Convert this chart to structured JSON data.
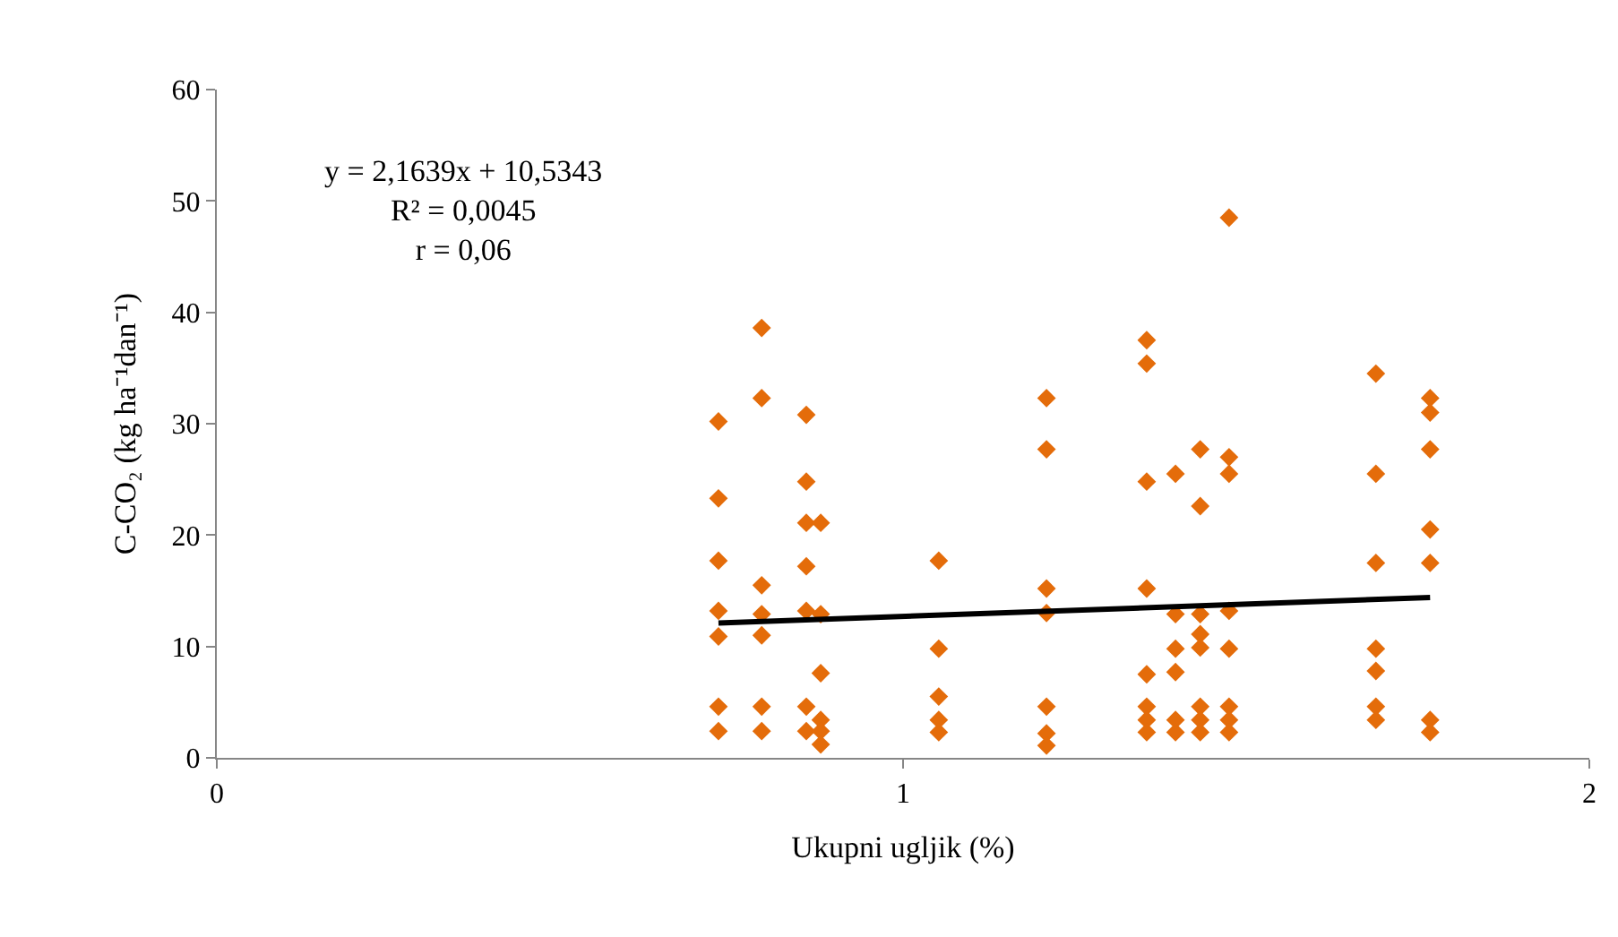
{
  "chart_data": {
    "type": "scatter",
    "xlabel": "Ukupni ugljik (%)",
    "ylabel": "C-CO₂ (kg ha⁻¹dan⁻¹)",
    "xlim": [
      0,
      2
    ],
    "xticks": [
      0,
      1,
      2
    ],
    "ylim": [
      0,
      60
    ],
    "yticks": [
      0,
      10,
      20,
      30,
      40,
      50,
      60
    ],
    "annotations": [
      "y = 2,1639x + 10,5343",
      "R² = 0,0045",
      "r = 0,06"
    ],
    "series": [
      {
        "color": "#e46c0a",
        "marker": "diamond",
        "x": [
          0.731,
          0.731,
          0.731,
          0.731,
          0.731,
          0.731,
          0.731,
          0.794,
          0.794,
          0.794,
          0.794,
          0.794,
          0.794,
          0.794,
          0.859,
          0.859,
          0.859,
          0.859,
          0.859,
          0.859,
          0.859,
          0.88,
          0.88,
          0.88,
          0.88,
          0.88,
          0.88,
          1.052,
          1.052,
          1.052,
          1.052,
          1.052,
          1.209,
          1.209,
          1.209,
          1.209,
          1.209,
          1.209,
          1.209,
          1.355,
          1.355,
          1.355,
          1.355,
          1.355,
          1.355,
          1.355,
          1.355,
          1.397,
          1.397,
          1.397,
          1.397,
          1.397,
          1.397,
          1.433,
          1.433,
          1.433,
          1.433,
          1.433,
          1.433,
          1.433,
          1.433,
          1.475,
          1.475,
          1.475,
          1.475,
          1.475,
          1.475,
          1.475,
          1.475,
          1.689,
          1.689,
          1.689,
          1.689,
          1.689,
          1.689,
          1.689,
          1.768,
          1.768,
          1.768,
          1.768,
          1.768,
          1.768,
          1.768
        ],
        "values": [
          30.2,
          23.3,
          17.7,
          13.2,
          10.9,
          4.6,
          2.4,
          38.6,
          32.3,
          15.5,
          12.9,
          11.0,
          4.6,
          2.4,
          30.8,
          24.8,
          21.1,
          17.2,
          13.2,
          4.6,
          2.4,
          21.1,
          12.9,
          7.6,
          3.4,
          2.4,
          1.2,
          17.7,
          9.8,
          5.5,
          3.4,
          2.3,
          32.3,
          27.7,
          15.2,
          13.0,
          4.6,
          2.2,
          1.1,
          37.5,
          35.4,
          24.8,
          15.2,
          7.5,
          4.6,
          3.4,
          2.3,
          25.5,
          12.9,
          9.8,
          7.7,
          3.4,
          2.3,
          27.7,
          22.6,
          12.9,
          11.1,
          9.9,
          4.6,
          3.4,
          2.3,
          48.5,
          27.0,
          25.5,
          13.2,
          9.8,
          4.6,
          3.4,
          2.3,
          34.5,
          25.5,
          17.5,
          9.8,
          7.8,
          4.6,
          3.4,
          32.3,
          31.0,
          27.7,
          20.5,
          17.5,
          3.4,
          2.3
        ]
      },
      {
        "type": "line",
        "marker": "none",
        "color": "#000000",
        "x": [
          0.731,
          1.768
        ],
        "values": [
          12.1,
          14.4
        ]
      }
    ]
  }
}
